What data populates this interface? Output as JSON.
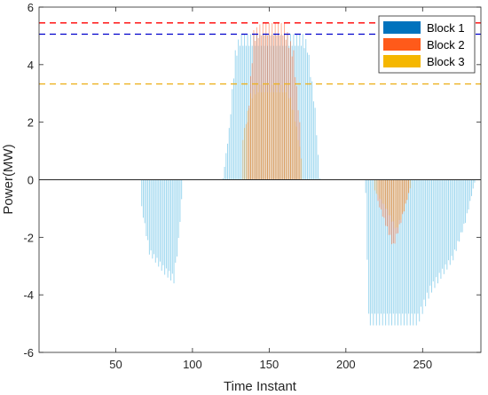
{
  "chart_data": {
    "type": "bar",
    "title": "",
    "xlabel": "Time Instant",
    "ylabel": "Power(MW)",
    "xlim": [
      0,
      288
    ],
    "ylim": [
      -6,
      6
    ],
    "xticks": [
      50,
      100,
      150,
      200,
      250
    ],
    "yticks": [
      -6,
      -4,
      -2,
      0,
      2,
      4,
      6
    ],
    "grid": false,
    "legend_position": "top-right",
    "series": [
      {
        "name": "Block 1",
        "color": "#0072BD",
        "segments": [
          {
            "x_start": 67,
            "x_end": 94,
            "shape": [
              [
                67,
                -1.0
              ],
              [
                72,
                -2.6
              ],
              [
                82,
                -3.3
              ],
              [
                88,
                -3.6
              ],
              [
                91,
                -2.2
              ],
              [
                94,
                0
              ]
            ]
          },
          {
            "x_start": 120,
            "x_end": 183,
            "shape": [
              [
                120,
                0.05
              ],
              [
                124,
                1.8
              ],
              [
                128,
                4.5
              ],
              [
                131,
                5.06
              ],
              [
                172,
                5.06
              ],
              [
                175,
                4.8
              ],
              [
                180,
                2.5
              ],
              [
                183,
                0.05
              ]
            ]
          },
          {
            "x_start": 213,
            "x_end": 284,
            "shape": [
              [
                213,
                -0.5
              ],
              [
                215,
                -5.06
              ],
              [
                247,
                -5.06
              ],
              [
                255,
                -4.0
              ],
              [
                270,
                -2.8
              ],
              [
                278,
                -1.5
              ],
              [
                284,
                -0.1
              ]
            ]
          }
        ]
      },
      {
        "name": "Block 2",
        "color": "#D95319",
        "segments": [
          {
            "x_start": 136,
            "x_end": 170,
            "shape": [
              [
                136,
                2.0
              ],
              [
                140,
                5.2
              ],
              [
                145,
                5.45
              ],
              [
                160,
                5.45
              ],
              [
                166,
                4.5
              ],
              [
                170,
                2.0
              ]
            ]
          },
          {
            "x_start": 221,
            "x_end": 241,
            "shape": [
              [
                221,
                -0.8
              ],
              [
                226,
                -1.6
              ],
              [
                231,
                -2.4
              ],
              [
                236,
                -1.5
              ],
              [
                241,
                -0.5
              ]
            ]
          }
        ]
      },
      {
        "name": "Block 3",
        "color": "#EDB120",
        "segments": [
          {
            "x_start": 133,
            "x_end": 171,
            "shape": [
              [
                133,
                1.5
              ],
              [
                138,
                3.0
              ],
              [
                142,
                3.3
              ],
              [
                162,
                3.3
              ],
              [
                167,
                2.2
              ],
              [
                171,
                0.8
              ]
            ]
          },
          {
            "x_start": 219,
            "x_end": 242,
            "shape": [
              [
                219,
                -0.4
              ],
              [
                226,
                -1.0
              ],
              [
                233,
                -1.8
              ],
              [
                238,
                -1.1
              ],
              [
                242,
                -0.3
              ]
            ]
          }
        ]
      }
    ],
    "reference_lines": [
      {
        "y": 5.45,
        "color": "#FF0000",
        "style": "dashed"
      },
      {
        "y": 5.06,
        "color": "#0000CC",
        "style": "dashed"
      },
      {
        "y": 3.33,
        "color": "#EDB120",
        "style": "dashed"
      }
    ]
  },
  "legend": {
    "items": [
      {
        "label": "Block 1",
        "color": "#0072BD"
      },
      {
        "label": "Block 2",
        "color": "#FF5A1A"
      },
      {
        "label": "Block 3",
        "color": "#F5B700"
      }
    ]
  },
  "axes": {
    "xlabel": "Time Instant",
    "ylabel": "Power(MW)",
    "xtick_labels": [
      "50",
      "100",
      "150",
      "200",
      "250"
    ],
    "ytick_labels": [
      "-6",
      "-4",
      "-2",
      "0",
      "2",
      "4",
      "6"
    ]
  }
}
